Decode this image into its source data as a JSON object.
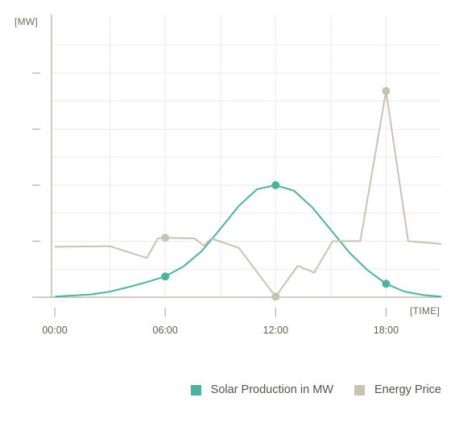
{
  "chart_data": {
    "type": "line",
    "y_unit_label": "[MW]",
    "x_unit_label": "[TIME]",
    "x_tick_labels": [
      "00:00",
      "06:00",
      "12:00",
      "18:00"
    ],
    "xlim": [
      0,
      21
    ],
    "ylim": [
      0,
      4.5
    ],
    "grid": true,
    "legend_position": "bottom-right",
    "series": [
      {
        "name": "Solar Production in MW",
        "color": "#4cb3a0",
        "x": [
          0,
          1,
          2,
          3,
          4,
          5,
          6,
          7,
          8,
          9,
          10,
          11,
          12,
          13,
          14,
          15,
          16,
          17,
          18,
          19,
          20,
          21
        ],
        "y": [
          0.01,
          0.03,
          0.05,
          0.1,
          0.18,
          0.27,
          0.37,
          0.55,
          0.83,
          1.22,
          1.63,
          1.93,
          2.0,
          1.9,
          1.6,
          1.2,
          0.8,
          0.48,
          0.24,
          0.1,
          0.04,
          0.01
        ],
        "markers_x": [
          6,
          12,
          18
        ]
      },
      {
        "name": "Energy Price",
        "color": "#c8c3b1",
        "x": [
          0,
          3,
          5,
          5.6,
          6,
          7.6,
          8.1,
          8.5,
          10,
          12,
          13.2,
          14.1,
          15.1,
          16.6,
          18,
          19.2,
          21
        ],
        "y": [
          0.9,
          0.91,
          0.7,
          1.05,
          1.06,
          1.05,
          0.92,
          1.05,
          0.88,
          0.01,
          0.56,
          0.44,
          1.0,
          1.0,
          3.68,
          1.0,
          0.95
        ],
        "markers_x": [
          6,
          12,
          18
        ]
      }
    ]
  }
}
